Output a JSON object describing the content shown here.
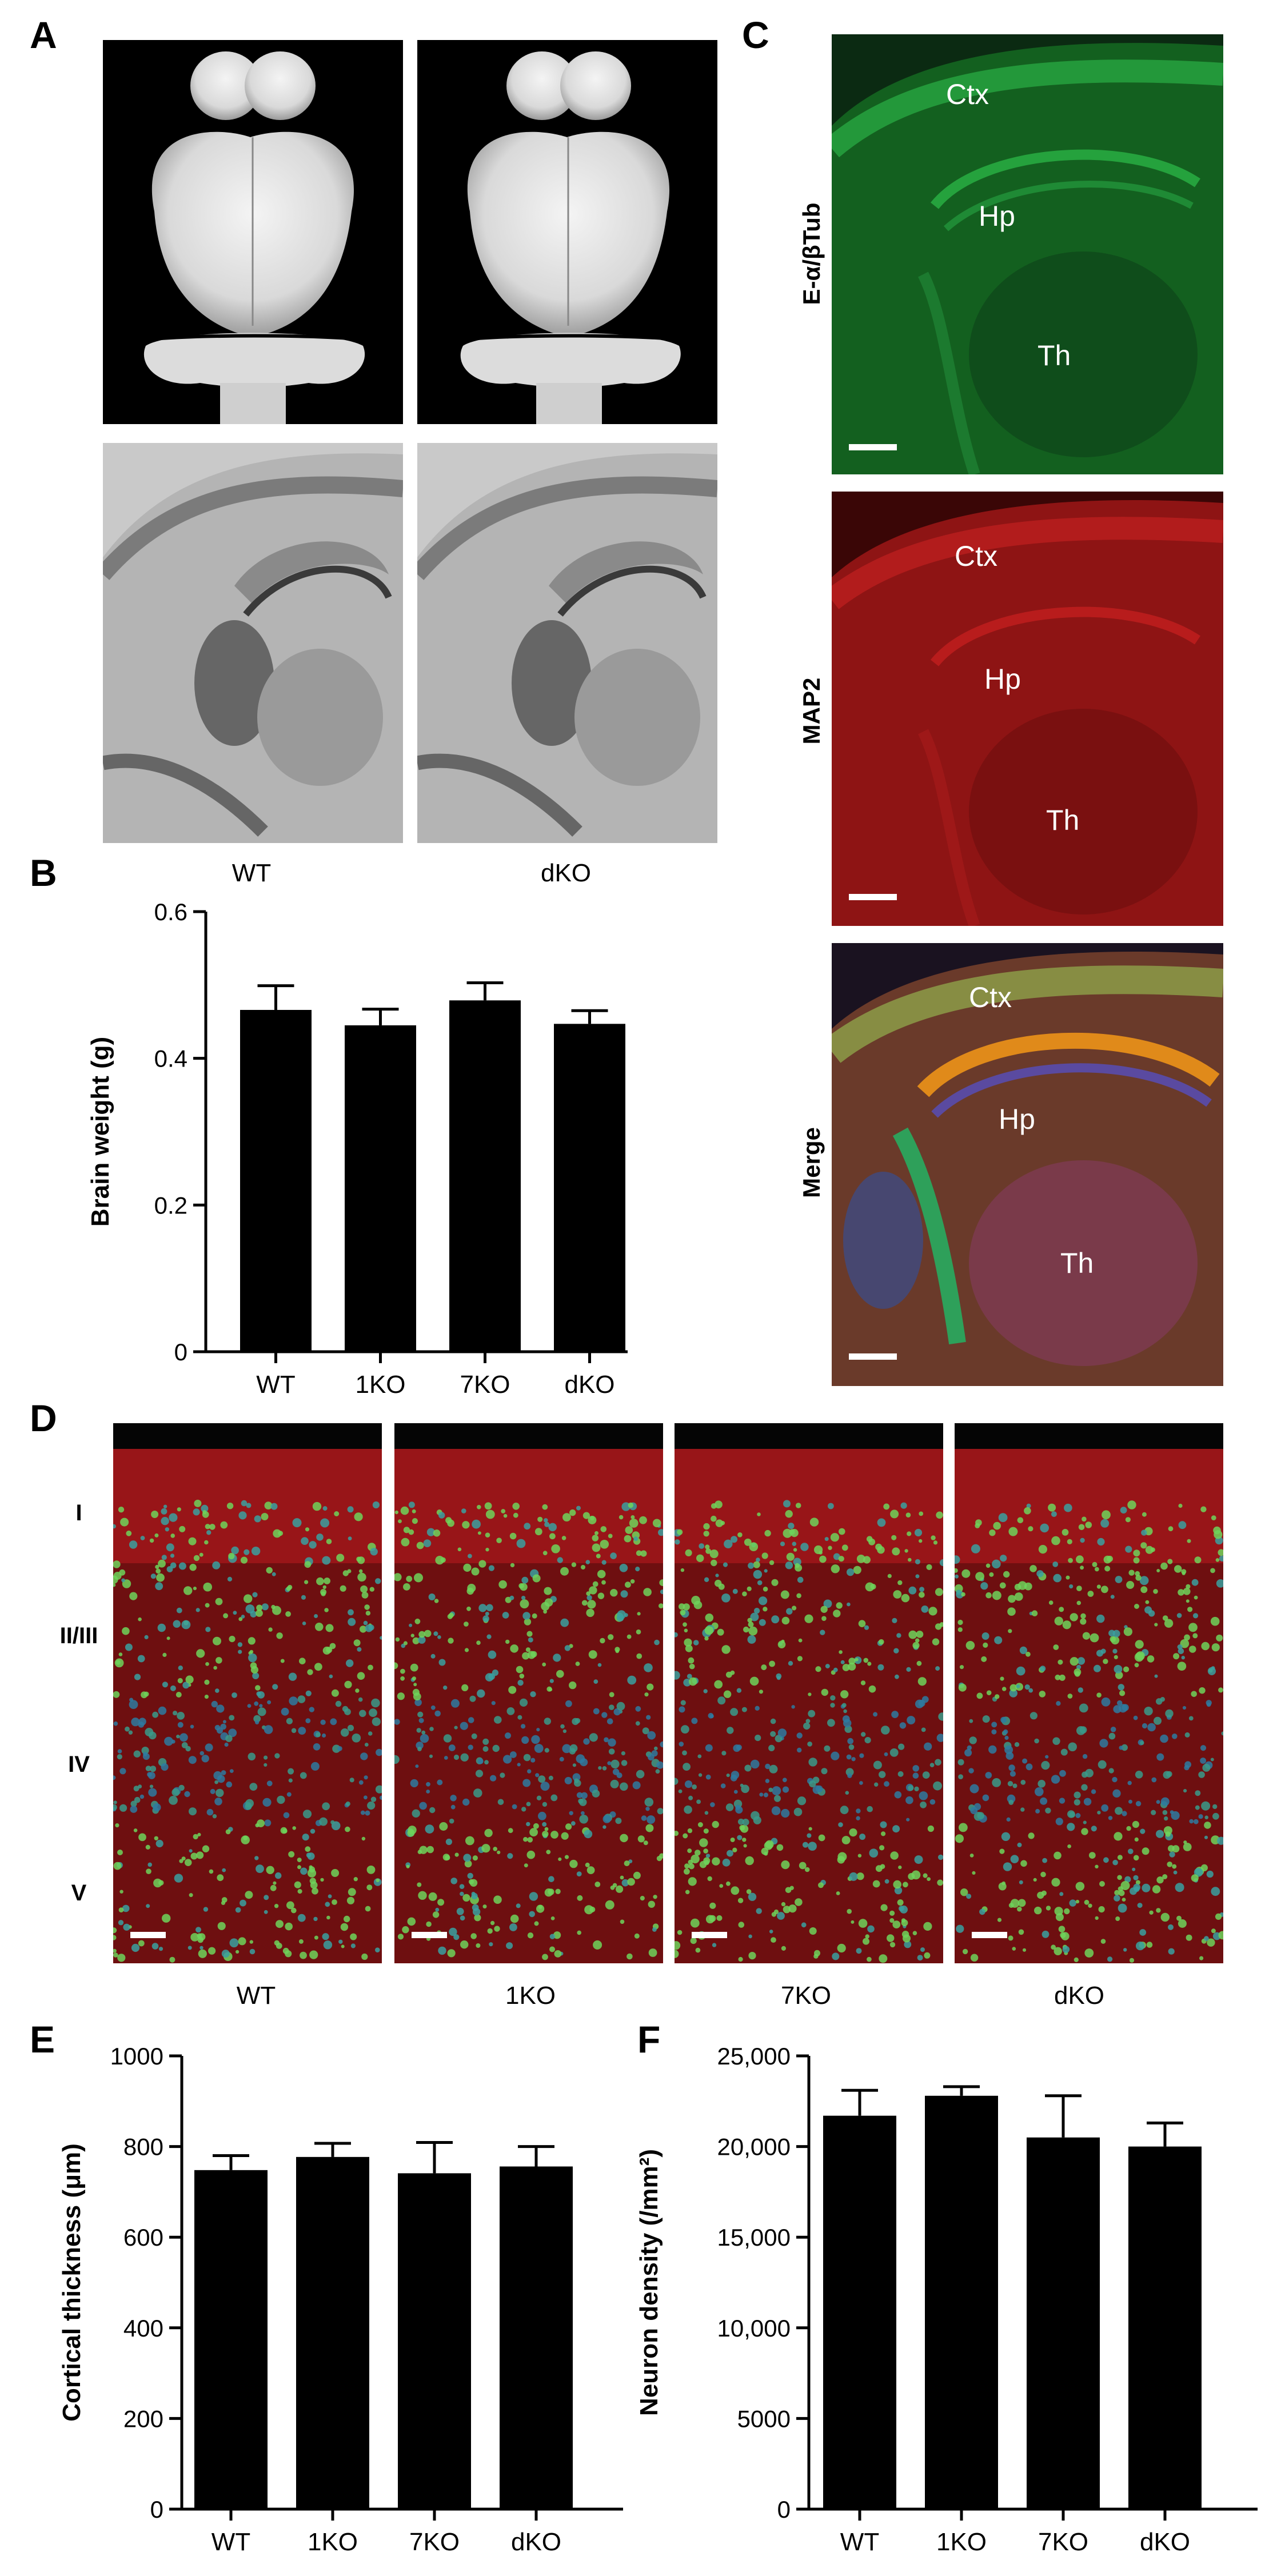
{
  "panels": {
    "A": {
      "label": "A",
      "captions": [
        "WT",
        "dKO"
      ],
      "images": [
        "whole-brain-wt",
        "whole-brain-dko",
        "slice-wt",
        "slice-dko"
      ]
    },
    "B": {
      "label": "B"
    },
    "C": {
      "label": "C",
      "rows": [
        {
          "stain": "E-α/βTub",
          "regions": [
            "Ctx",
            "Hp",
            "Th"
          ],
          "color": "#1f9a3a"
        },
        {
          "stain": "MAP2",
          "regions": [
            "Ctx",
            "Hp",
            "Th"
          ],
          "color": "#b01818"
        },
        {
          "stain": "Merge",
          "regions": [
            "Ctx",
            "Hp",
            "Th"
          ],
          "color": "#5a6a3a"
        }
      ]
    },
    "D": {
      "label": "D",
      "layers": [
        "I",
        "II/III",
        "IV",
        "V"
      ],
      "captions": [
        "WT",
        "1KO",
        "7KO",
        "dKO"
      ]
    },
    "E": {
      "label": "E"
    },
    "F": {
      "label": "F"
    }
  },
  "chart_data": [
    {
      "id": "B",
      "type": "bar",
      "categories": [
        "WT",
        "1KO",
        "7KO",
        "dKO"
      ],
      "values": [
        0.466,
        0.445,
        0.479,
        0.447
      ],
      "errors": [
        0.033,
        0.022,
        0.024,
        0.018
      ],
      "ylabel": "Brain weight (g)",
      "ylim": [
        0,
        0.6
      ],
      "yticks": [
        0,
        0.2,
        0.4,
        0.6
      ],
      "ytick_labels": [
        "0",
        "0.2",
        "0.4",
        "0.6"
      ],
      "color": "#000000"
    },
    {
      "id": "E",
      "type": "bar",
      "categories": [
        "WT",
        "1KO",
        "7KO",
        "dKO"
      ],
      "values": [
        748,
        777,
        741,
        756
      ],
      "errors": [
        32,
        30,
        68,
        44
      ],
      "ylabel": "Cortical thickness (μm)",
      "ylim": [
        0,
        1000
      ],
      "yticks": [
        0,
        200,
        400,
        600,
        800,
        1000
      ],
      "ytick_labels": [
        "0",
        "200",
        "400",
        "600",
        "800",
        "1000"
      ],
      "color": "#000000"
    },
    {
      "id": "F",
      "type": "bar",
      "categories": [
        "WT",
        "1KO",
        "7KO",
        "dKO"
      ],
      "values": [
        21700,
        22800,
        20500,
        20000
      ],
      "errors": [
        1400,
        500,
        2300,
        1300
      ],
      "ylabel": "Neuron density (/mm²)",
      "ylim": [
        0,
        25000
      ],
      "yticks": [
        0,
        5000,
        10000,
        15000,
        20000,
        25000
      ],
      "ytick_labels": [
        "0",
        "5000",
        "10,000",
        "15,000",
        "20,000",
        "25,000"
      ],
      "color": "#000000"
    }
  ]
}
